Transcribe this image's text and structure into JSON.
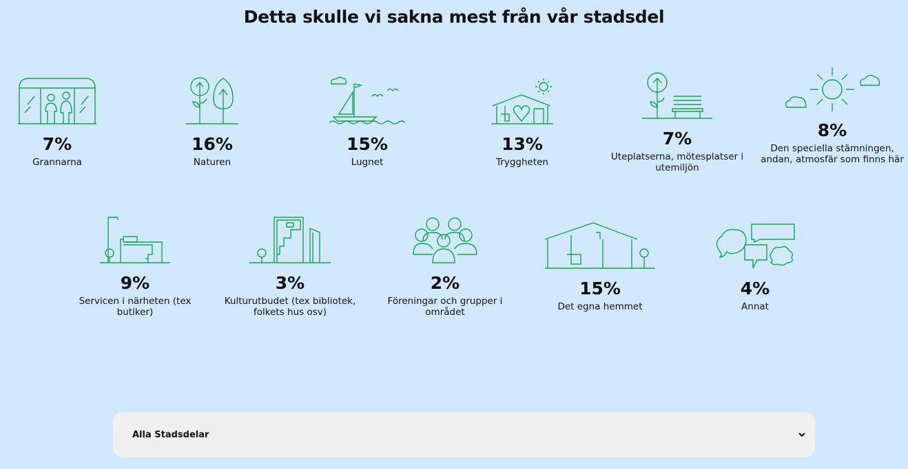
{
  "page": {
    "title": "Detta skulle vi sakna mest från vår stadsdel"
  },
  "accent_color": "#12a84a",
  "items": [
    {
      "icon": "bus-stop-people-icon",
      "value": "7%",
      "label": "Grannarna"
    },
    {
      "icon": "trees-icon",
      "value": "16%",
      "label": "Naturen"
    },
    {
      "icon": "sailboat-icon",
      "value": "15%",
      "label": "Lugnet"
    },
    {
      "icon": "house-heart-icon",
      "value": "13%",
      "label": "Tryggheten"
    },
    {
      "icon": "park-bench-icon",
      "value": "7%",
      "label": "Uteplatserna, mötesplatser i utemiljön"
    },
    {
      "icon": "sun-clouds-icon",
      "value": "8%",
      "label": "Den speciella stämningen, andan, atmosfär som finns här"
    },
    {
      "icon": "store-building-icon",
      "value": "9%",
      "label": "Servicen i närheten (tex butiker)"
    },
    {
      "icon": "culture-building-icon",
      "value": "3%",
      "label": "Kulturutbudet (tex bibliotek, folkets hus osv)"
    },
    {
      "icon": "people-group-icon",
      "value": "2%",
      "label": "Föreningar och grupper i området"
    },
    {
      "icon": "home-icon",
      "value": "15%",
      "label": "Det egna hemmet"
    },
    {
      "icon": "speech-bubbles-icon",
      "value": "4%",
      "label": "Annat"
    }
  ],
  "filter": {
    "selected": "Alla Stadsdelar",
    "icon": "chevron-down-icon"
  }
}
